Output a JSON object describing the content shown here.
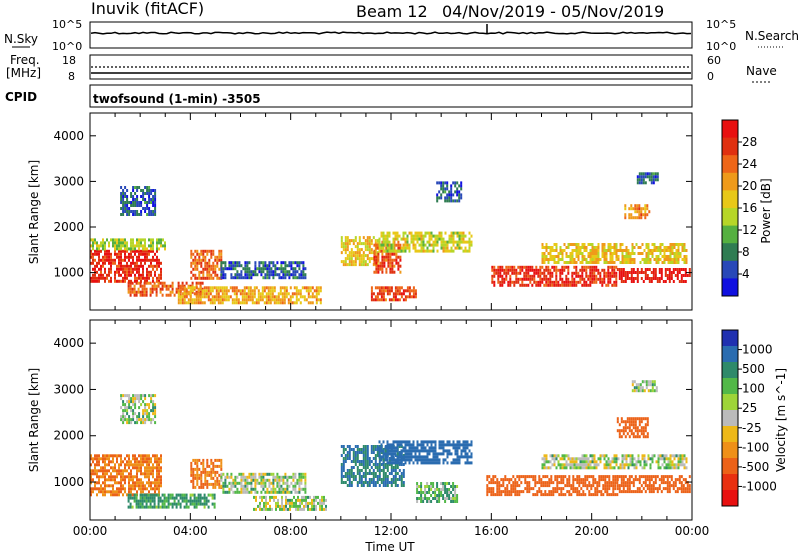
{
  "header": {
    "title": "Inuvik (fitACF)",
    "beam": "Beam 12",
    "date_range": "04/Nov/2019 - 05/Nov/2019"
  },
  "noise_panel": {
    "left_label": "N.Sky",
    "right_label": "N.Search",
    "left_ticks": [
      "10^5",
      "10^0"
    ],
    "right_ticks": [
      "10^5",
      "10^0"
    ]
  },
  "freq_panel": {
    "left_label_1": "Freq.",
    "left_label_2": "[MHz]",
    "right_label": "Nave",
    "left_ticks": [
      "18",
      "8"
    ],
    "right_ticks": [
      "60",
      "0"
    ]
  },
  "cpid_panel": {
    "label": "CPID",
    "text": "twofsound (1-min) -3505"
  },
  "colors": {
    "power_scale": [
      "#1010e0",
      "#2848b8",
      "#2f7c52",
      "#55b040",
      "#b6d628",
      "#e8c818",
      "#ef9a1a",
      "#ee6618",
      "#e03010",
      "#e81010"
    ],
    "velocity_scale": [
      "#2030b0",
      "#2a6cb0",
      "#2e8a6a",
      "#52b848",
      "#9ed438",
      "#bbbbbb",
      "#eeb818",
      "#ef9018",
      "#ec6218",
      "#e83010",
      "#e81010"
    ]
  },
  "chart_data": [
    {
      "type": "heatmap",
      "title": "",
      "xlabel": "",
      "ylabel": "Slant Range [km]",
      "xlim": [
        0,
        24
      ],
      "ylim": [
        180,
        4500
      ],
      "xtick_labels": [
        "00:00",
        "04:00",
        "08:00",
        "12:00",
        "16:00",
        "20:00",
        "00:00"
      ],
      "ytick_labels": [
        "1000",
        "2000",
        "3000",
        "4000"
      ],
      "colorbar": {
        "label": "Power [dB]",
        "range": [
          0,
          32
        ],
        "tick_labels": [
          "4",
          "8",
          "12",
          "16",
          "20",
          "24",
          "28"
        ]
      },
      "regions": [
        {
          "t": [
            0.0,
            2.8
          ],
          "r": [
            800,
            1500
          ],
          "value": 28
        },
        {
          "t": [
            0.0,
            3.0
          ],
          "r": [
            1500,
            1750
          ],
          "value": 14
        },
        {
          "t": [
            1.2,
            2.6
          ],
          "r": [
            2300,
            2900
          ],
          "value": 6
        },
        {
          "t": [
            1.5,
            4.5
          ],
          "r": [
            500,
            800
          ],
          "value": 24
        },
        {
          "t": [
            4.0,
            5.2
          ],
          "r": [
            900,
            1500
          ],
          "value": 24
        },
        {
          "t": [
            5.2,
            8.6
          ],
          "r": [
            900,
            1250
          ],
          "value": 6
        },
        {
          "t": [
            3.5,
            9.2
          ],
          "r": [
            350,
            700
          ],
          "value": 20
        },
        {
          "t": [
            10.0,
            11.5
          ],
          "r": [
            1200,
            1800
          ],
          "value": 18
        },
        {
          "t": [
            11.3,
            12.4
          ],
          "r": [
            1000,
            1700
          ],
          "value": 26
        },
        {
          "t": [
            11.5,
            15.2
          ],
          "r": [
            1500,
            1900
          ],
          "value": 16
        },
        {
          "t": [
            13.8,
            14.8
          ],
          "r": [
            2600,
            3000
          ],
          "value": 6
        },
        {
          "t": [
            11.2,
            13.0
          ],
          "r": [
            400,
            700
          ],
          "value": 26
        },
        {
          "t": [
            16.0,
            21.0
          ],
          "r": [
            750,
            1150
          ],
          "value": 28
        },
        {
          "t": [
            18.0,
            23.8
          ],
          "r": [
            1250,
            1650
          ],
          "value": 18
        },
        {
          "t": [
            21.3,
            22.3
          ],
          "r": [
            2200,
            2500
          ],
          "value": 22
        },
        {
          "t": [
            21.8,
            22.6
          ],
          "r": [
            3000,
            3200
          ],
          "value": 6
        },
        {
          "t": [
            21.0,
            23.9
          ],
          "r": [
            800,
            1100
          ],
          "value": 30
        }
      ]
    },
    {
      "type": "heatmap",
      "title": "",
      "xlabel": "Time UT",
      "ylabel": "Slant Range [km]",
      "xlim": [
        0,
        24
      ],
      "ylim": [
        180,
        4500
      ],
      "xtick_labels": [
        "00:00",
        "04:00",
        "08:00",
        "12:00",
        "16:00",
        "20:00",
        "00:00"
      ],
      "ytick_labels": [
        "1000",
        "2000",
        "3000",
        "4000"
      ],
      "colorbar": {
        "label": "Velocity [m s^-1]",
        "tick_labels": [
          "1000",
          "500",
          "100",
          "25",
          "-25",
          "-100",
          "-500",
          "-1000"
        ]
      },
      "regions": [
        {
          "t": [
            0.0,
            2.8
          ],
          "r": [
            700,
            1600
          ],
          "value": -300
        },
        {
          "t": [
            1.2,
            2.6
          ],
          "r": [
            2300,
            2900
          ],
          "value": 10
        },
        {
          "t": [
            1.5,
            5.0
          ],
          "r": [
            450,
            750
          ],
          "value": 80
        },
        {
          "t": [
            4.0,
            5.2
          ],
          "r": [
            900,
            1500
          ],
          "value": -300
        },
        {
          "t": [
            5.2,
            8.6
          ],
          "r": [
            800,
            1200
          ],
          "value": 10
        },
        {
          "t": [
            6.5,
            9.4
          ],
          "r": [
            400,
            700
          ],
          "value": 10
        },
        {
          "t": [
            10.0,
            12.5
          ],
          "r": [
            900,
            1800
          ],
          "value": 300
        },
        {
          "t": [
            11.5,
            15.2
          ],
          "r": [
            1400,
            1900
          ],
          "value": 400
        },
        {
          "t": [
            13.0,
            14.6
          ],
          "r": [
            600,
            1000
          ],
          "value": 50
        },
        {
          "t": [
            15.8,
            21.0
          ],
          "r": [
            700,
            1150
          ],
          "value": -400
        },
        {
          "t": [
            18.0,
            23.8
          ],
          "r": [
            1300,
            1600
          ],
          "value": 5
        },
        {
          "t": [
            21.0,
            22.2
          ],
          "r": [
            2000,
            2400
          ],
          "value": -400
        },
        {
          "t": [
            21.6,
            22.6
          ],
          "r": [
            3000,
            3200
          ],
          "value": 10
        },
        {
          "t": [
            21.0,
            23.9
          ],
          "r": [
            800,
            1150
          ],
          "value": -400
        }
      ]
    }
  ]
}
